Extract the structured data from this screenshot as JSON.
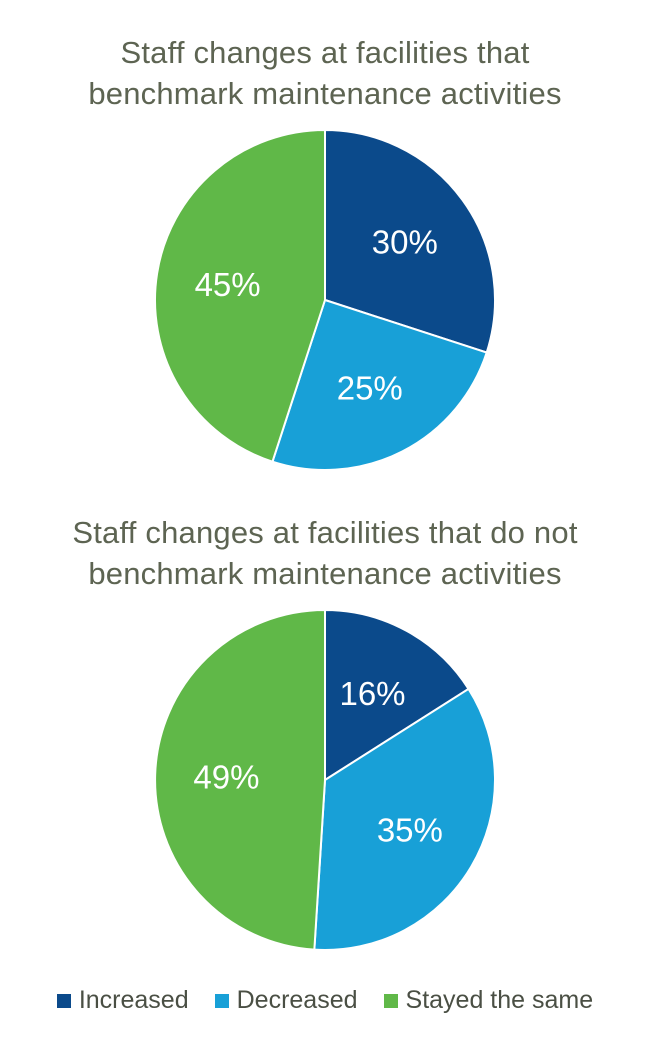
{
  "colors": {
    "increased": "#0b4a8b",
    "decreased": "#18a0d7",
    "stayed_the_same": "#60b848",
    "title_text": "#5d6452",
    "legend_text": "#4a4f44"
  },
  "legend": [
    {
      "label": "Increased",
      "color": "#0b4a8b"
    },
    {
      "label": "Decreased",
      "color": "#18a0d7"
    },
    {
      "label": "Stayed the same",
      "color": "#60b848"
    }
  ],
  "chart_data": [
    {
      "type": "pie",
      "title_lines": [
        "Staff changes at facilities that",
        "benchmark maintenance activities"
      ],
      "title": "Staff changes at facilities that benchmark maintenance activities",
      "legend_position": "bottom",
      "slices": [
        {
          "name": "Increased",
          "value": 30,
          "label": "30%",
          "color": "#0b4a8b"
        },
        {
          "name": "Decreased",
          "value": 25,
          "label": "25%",
          "color": "#18a0d7"
        },
        {
          "name": "Stayed the same",
          "value": 45,
          "label": "45%",
          "color": "#60b848"
        }
      ]
    },
    {
      "type": "pie",
      "title_lines": [
        "Staff changes at facilities that do not",
        "benchmark maintenance activities"
      ],
      "title": "Staff changes at facilities that do not benchmark maintenance activities",
      "legend_position": "bottom",
      "slices": [
        {
          "name": "Increased",
          "value": 16,
          "label": "16%",
          "color": "#0b4a8b"
        },
        {
          "name": "Decreased",
          "value": 35,
          "label": "35%",
          "color": "#18a0d7"
        },
        {
          "name": "Stayed the same",
          "value": 49,
          "label": "49%",
          "color": "#60b848"
        }
      ]
    }
  ]
}
